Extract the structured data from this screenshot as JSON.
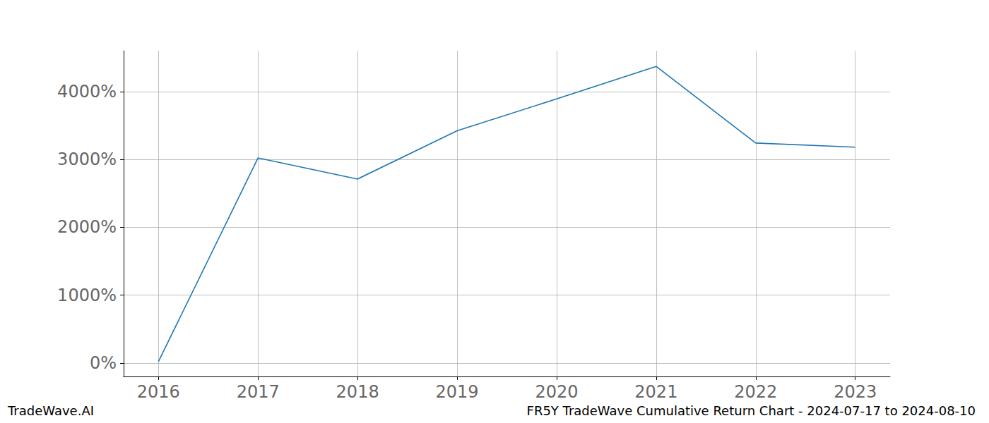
{
  "chart_data": {
    "type": "line",
    "title": "FR5Y TradeWave Cumulative Return Chart - 2024-07-17 to 2024-08-10",
    "annotations": [
      "TradeWave.AI"
    ],
    "x": [
      2016,
      2017,
      2018,
      2019,
      2020,
      2021,
      2022,
      2023
    ],
    "series": [
      {
        "name": "FR5Y",
        "color": "#1f77b4",
        "values": [
          20,
          3020,
          2710,
          3420,
          3890,
          4370,
          3240,
          3180
        ]
      }
    ],
    "xlim": [
      2015.65,
      2023.35
    ],
    "xticks": [
      2016,
      2017,
      2018,
      2019,
      2020,
      2021,
      2022,
      2023
    ],
    "ylim": [
      -200,
      4600
    ],
    "yticks": [
      {
        "value": 0,
        "label": "0%"
      },
      {
        "value": 1000,
        "label": "1000%"
      },
      {
        "value": 2000,
        "label": "2000%"
      },
      {
        "value": 3000,
        "label": "3000%"
      },
      {
        "value": 4000,
        "label": "4000%"
      }
    ],
    "grid": true
  }
}
